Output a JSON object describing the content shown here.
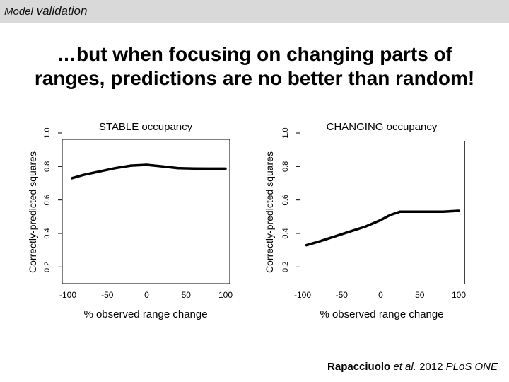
{
  "header": {
    "label_parts": [
      "Model",
      "validation"
    ]
  },
  "slide": {
    "title_lines": [
      "…but when focusing on changing parts of",
      "ranges, predictions are no better than random!"
    ]
  },
  "citation": {
    "author": "Rapacciuolo",
    "etal": "et al.",
    "year": "2012",
    "journal": "PLoS ONE"
  },
  "chart_data": [
    {
      "type": "line",
      "title": "STABLE occupancy",
      "xlabel": "% observed range change",
      "ylabel": "Correctly-predicted squares",
      "xlim": [
        -100,
        100
      ],
      "ylim": [
        0.1,
        1.0
      ],
      "xticks": [
        -100,
        -50,
        0,
        50,
        100
      ],
      "xtick_labels": [
        "-100",
        "-50",
        "0",
        "50",
        "100"
      ],
      "yticks": [
        0.2,
        0.4,
        0.6,
        0.8,
        1.0
      ],
      "ytick_labels": [
        "0.2",
        "0.4",
        "0.6",
        "0.8",
        "1.0"
      ],
      "box": true,
      "series": [
        {
          "x": [
            -95,
            -80,
            -60,
            -40,
            -20,
            0,
            20,
            40,
            60,
            80,
            100
          ],
          "y": [
            0.73,
            0.75,
            0.77,
            0.79,
            0.805,
            0.81,
            0.8,
            0.79,
            0.788,
            0.787,
            0.787
          ]
        }
      ]
    },
    {
      "type": "line",
      "title": "CHANGING occupancy",
      "xlabel": "% observed range change",
      "ylabel": "Correctly-predicted squares",
      "xlim": [
        -100,
        100
      ],
      "ylim": [
        0.1,
        1.0
      ],
      "xticks": [
        -100,
        -50,
        0,
        50,
        100
      ],
      "xtick_labels": [
        "-100",
        "-50",
        "0",
        "50",
        "100"
      ],
      "yticks": [
        0.2,
        0.4,
        0.6,
        0.8,
        1.0
      ],
      "ytick_labels": [
        "0.2",
        "0.4",
        "0.6",
        "0.8",
        "1.0"
      ],
      "box": false,
      "series": [
        {
          "x": [
            -95,
            -80,
            -60,
            -40,
            -20,
            0,
            12,
            25,
            40,
            60,
            80,
            100
          ],
          "y": [
            0.33,
            0.35,
            0.38,
            0.41,
            0.44,
            0.48,
            0.51,
            0.53,
            0.53,
            0.53,
            0.53,
            0.535
          ]
        }
      ]
    }
  ]
}
